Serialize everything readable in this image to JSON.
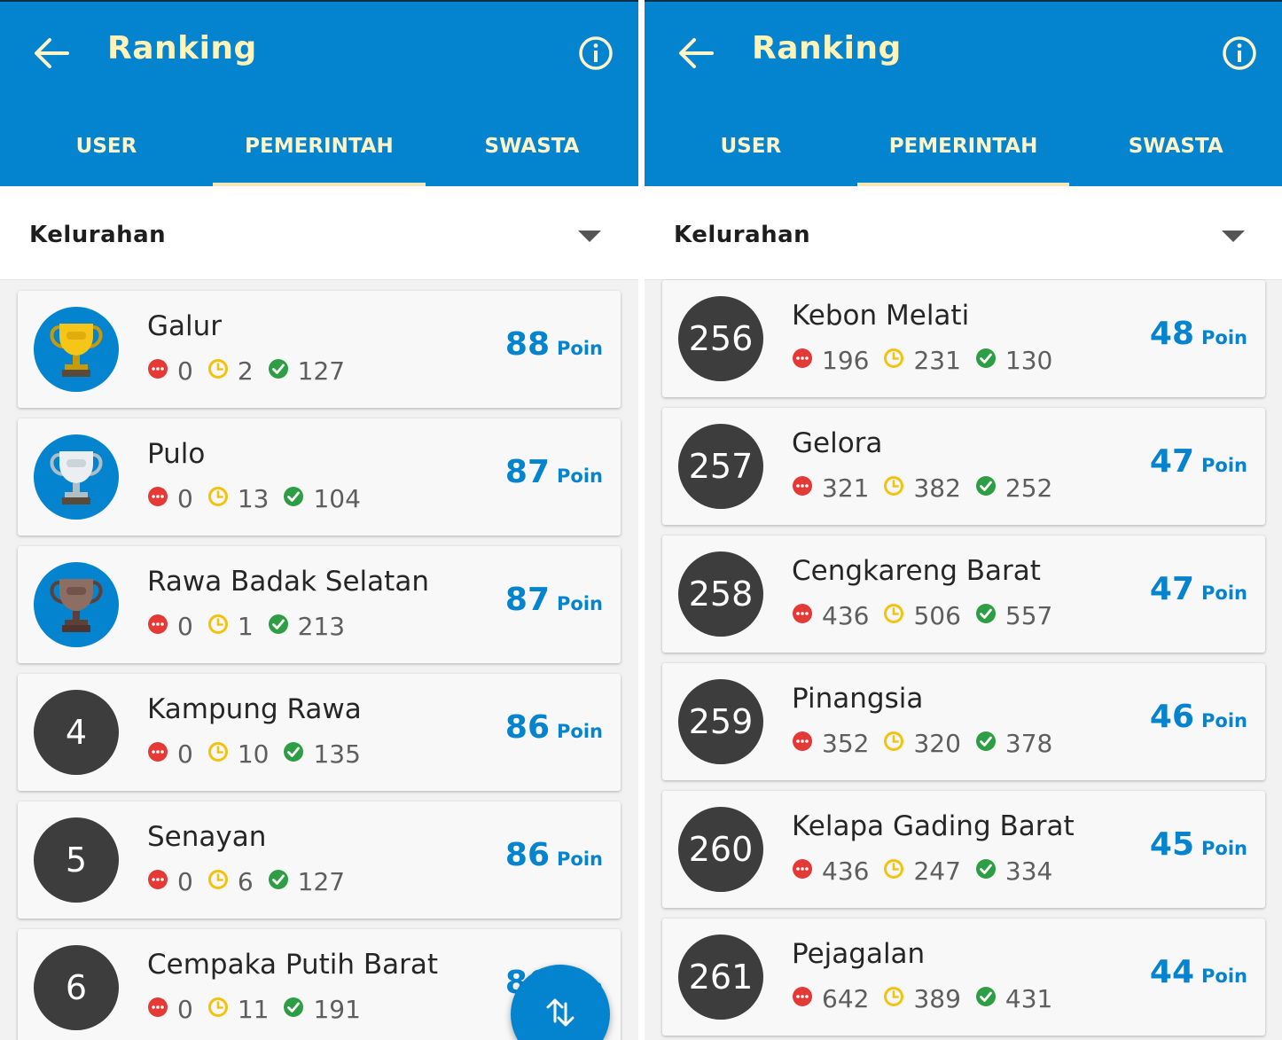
{
  "screens": [
    {
      "header": {
        "title": "Ranking"
      },
      "tabs": [
        "USER",
        "PEMERINTAH",
        "SWASTA"
      ],
      "active_tab": "PEMERINTAH",
      "filter": {
        "selected": "Kelurahan"
      },
      "items": [
        {
          "badge": "gold-trophy",
          "name": "Galur",
          "red": "0",
          "yellow": "2",
          "green": "127",
          "points": "88",
          "unit": "Poin"
        },
        {
          "badge": "silver-trophy",
          "name": "Pulo",
          "red": "0",
          "yellow": "13",
          "green": "104",
          "points": "87",
          "unit": "Poin"
        },
        {
          "badge": "bronze-trophy",
          "name": "Rawa Badak Selatan",
          "red": "0",
          "yellow": "1",
          "green": "213",
          "points": "87",
          "unit": "Poin"
        },
        {
          "rank": "4",
          "name": "Kampung Rawa",
          "red": "0",
          "yellow": "10",
          "green": "135",
          "points": "86",
          "unit": "Poin"
        },
        {
          "rank": "5",
          "name": "Senayan",
          "red": "0",
          "yellow": "6",
          "green": "127",
          "points": "86",
          "unit": "Poin"
        },
        {
          "rank": "6",
          "name": "Cempaka Putih Barat",
          "red": "0",
          "yellow": "11",
          "green": "191",
          "points": "86",
          "unit": "Poin"
        }
      ],
      "fab": {
        "icon": "sort-swap-icon"
      }
    },
    {
      "header": {
        "title": "Ranking"
      },
      "tabs": [
        "USER",
        "PEMERINTAH",
        "SWASTA"
      ],
      "active_tab": "PEMERINTAH",
      "filter": {
        "selected": "Kelurahan"
      },
      "items": [
        {
          "rank": "256",
          "name": "Kebon Melati",
          "red": "196",
          "yellow": "231",
          "green": "130",
          "points": "48",
          "unit": "Poin"
        },
        {
          "rank": "257",
          "name": "Gelora",
          "red": "321",
          "yellow": "382",
          "green": "252",
          "points": "47",
          "unit": "Poin"
        },
        {
          "rank": "258",
          "name": "Cengkareng Barat",
          "red": "436",
          "yellow": "506",
          "green": "557",
          "points": "47",
          "unit": "Poin"
        },
        {
          "rank": "259",
          "name": "Pinangsia",
          "red": "352",
          "yellow": "320",
          "green": "378",
          "points": "46",
          "unit": "Poin"
        },
        {
          "rank": "260",
          "name": "Kelapa Gading Barat",
          "red": "436",
          "yellow": "247",
          "green": "334",
          "points": "45",
          "unit": "Poin"
        },
        {
          "rank": "261",
          "name": "Pejagalan",
          "red": "642",
          "yellow": "389",
          "green": "431",
          "points": "44",
          "unit": "Poin"
        }
      ]
    }
  ],
  "colors": {
    "primary": "#0483cf",
    "title": "#fff3b8",
    "red": "#e53935",
    "yellow": "#f4c20d",
    "green": "#2e9e44",
    "rank_badge": "#3d3d3d"
  }
}
